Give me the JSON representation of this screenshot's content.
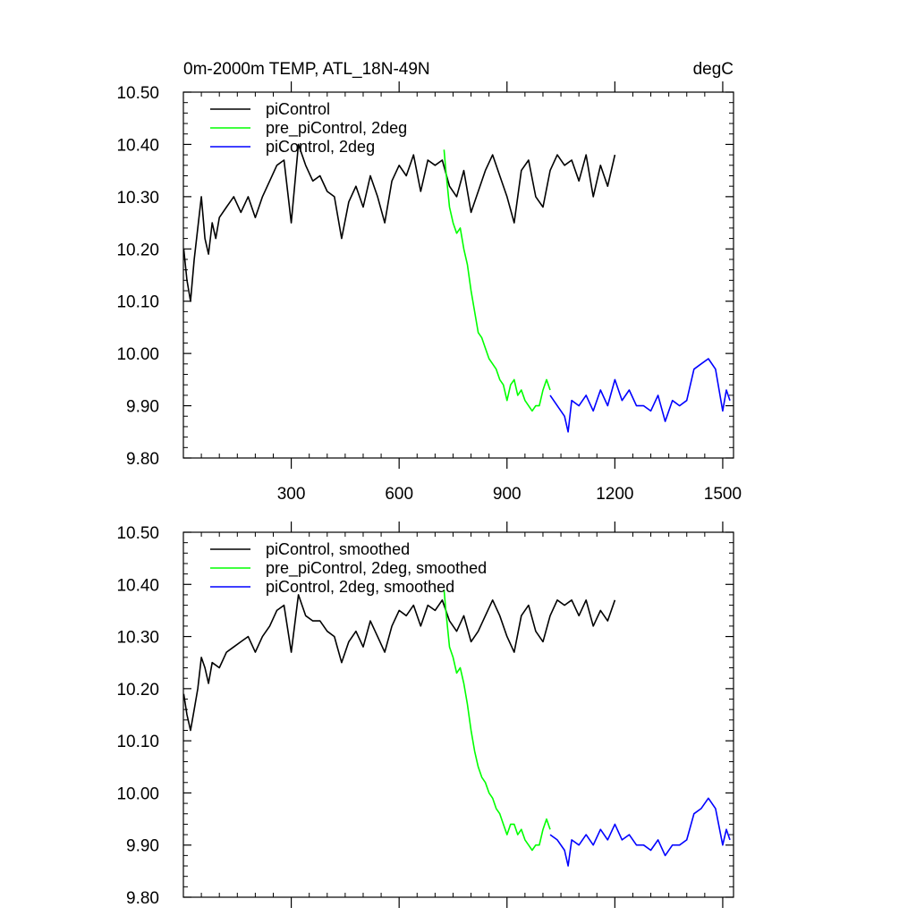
{
  "figure": {
    "title_left": "0m-2000m TEMP, ATL_18N-49N",
    "title_right": "degC"
  },
  "colors": {
    "piControl": "#000000",
    "pre_piControl_2deg": "#00ff00",
    "piControl_2deg": "#0000ff"
  },
  "chart_data": [
    {
      "type": "line",
      "title": "0m-2000m TEMP, ATL_18N-49N",
      "units": "degC",
      "xlabel": "",
      "ylabel": "",
      "xlim": [
        0,
        1530
      ],
      "ylim": [
        9.8,
        10.5
      ],
      "x_ticks": [
        300,
        600,
        900,
        1200,
        1500
      ],
      "x_tick_labels": [
        "300",
        "600",
        "900",
        "1200",
        "1500"
      ],
      "y_ticks": [
        9.8,
        9.9,
        10.0,
        10.1,
        10.2,
        10.3,
        10.4,
        10.5
      ],
      "y_tick_labels": [
        "9.80",
        "9.90",
        "10.00",
        "10.10",
        "10.20",
        "10.30",
        "10.40",
        "10.50"
      ],
      "legend_position": "top-left",
      "series": [
        {
          "name": "piControl",
          "color": "#000000",
          "x": [
            1,
            10,
            20,
            30,
            40,
            50,
            60,
            70,
            80,
            90,
            100,
            120,
            140,
            160,
            180,
            200,
            220,
            240,
            260,
            280,
            300,
            320,
            340,
            360,
            380,
            400,
            420,
            440,
            460,
            480,
            500,
            520,
            540,
            560,
            580,
            600,
            620,
            640,
            660,
            680,
            700,
            720,
            740,
            760,
            780,
            800,
            820,
            840,
            860,
            880,
            900,
            920,
            940,
            960,
            980,
            1000,
            1020,
            1040,
            1060,
            1080,
            1100,
            1120,
            1140,
            1160,
            1180,
            1200
          ],
          "values": [
            10.2,
            10.14,
            10.1,
            10.18,
            10.24,
            10.3,
            10.22,
            10.19,
            10.25,
            10.22,
            10.26,
            10.28,
            10.3,
            10.27,
            10.3,
            10.26,
            10.3,
            10.33,
            10.36,
            10.37,
            10.25,
            10.4,
            10.36,
            10.33,
            10.34,
            10.31,
            10.3,
            10.22,
            10.29,
            10.32,
            10.28,
            10.34,
            10.3,
            10.25,
            10.33,
            10.36,
            10.34,
            10.38,
            10.31,
            10.37,
            10.36,
            10.37,
            10.32,
            10.3,
            10.35,
            10.27,
            10.31,
            10.35,
            10.38,
            10.34,
            10.3,
            10.25,
            10.35,
            10.37,
            10.3,
            10.28,
            10.35,
            10.38,
            10.36,
            10.37,
            10.33,
            10.38,
            10.3,
            10.36,
            10.32,
            10.38
          ]
        },
        {
          "name": "pre_piControl, 2deg",
          "color": "#00ff00",
          "x": [
            725,
            730,
            740,
            750,
            760,
            770,
            780,
            790,
            800,
            810,
            820,
            830,
            840,
            850,
            860,
            870,
            880,
            890,
            900,
            910,
            920,
            930,
            940,
            950,
            960,
            970,
            980,
            990,
            1000,
            1010,
            1020
          ],
          "values": [
            10.39,
            10.35,
            10.28,
            10.25,
            10.23,
            10.24,
            10.2,
            10.17,
            10.12,
            10.08,
            10.04,
            10.03,
            10.01,
            9.99,
            9.98,
            9.97,
            9.95,
            9.94,
            9.91,
            9.94,
            9.95,
            9.92,
            9.93,
            9.91,
            9.9,
            9.89,
            9.9,
            9.9,
            9.93,
            9.95,
            9.93
          ]
        },
        {
          "name": "piControl, 2deg",
          "color": "#0000ff",
          "x": [
            1020,
            1040,
            1060,
            1070,
            1080,
            1100,
            1120,
            1140,
            1160,
            1180,
            1200,
            1220,
            1240,
            1260,
            1280,
            1300,
            1320,
            1340,
            1360,
            1380,
            1400,
            1420,
            1440,
            1460,
            1480,
            1500,
            1510,
            1520
          ],
          "values": [
            9.92,
            9.9,
            9.88,
            9.85,
            9.91,
            9.9,
            9.92,
            9.89,
            9.93,
            9.9,
            9.95,
            9.91,
            9.93,
            9.9,
            9.9,
            9.89,
            9.92,
            9.87,
            9.91,
            9.9,
            9.91,
            9.97,
            9.98,
            9.99,
            9.97,
            9.89,
            9.93,
            9.91
          ]
        }
      ],
      "legend": [
        "piControl",
        "pre_piControl, 2deg",
        "piControl, 2deg"
      ]
    },
    {
      "type": "line",
      "title": "",
      "xlabel": "",
      "ylabel": "",
      "xlim": [
        0,
        1530
      ],
      "ylim": [
        9.8,
        10.5
      ],
      "x_ticks": [
        300,
        600,
        900,
        1200,
        1500
      ],
      "x_tick_labels": [],
      "y_ticks": [
        9.8,
        9.9,
        10.0,
        10.1,
        10.2,
        10.3,
        10.4,
        10.5
      ],
      "y_tick_labels": [
        "9.80",
        "9.90",
        "10.00",
        "10.10",
        "10.20",
        "10.30",
        "10.40",
        "10.50"
      ],
      "legend_position": "top-left",
      "series": [
        {
          "name": "piControl, smoothed",
          "color": "#000000",
          "x": [
            1,
            10,
            20,
            30,
            40,
            50,
            60,
            70,
            80,
            100,
            120,
            140,
            160,
            180,
            200,
            220,
            240,
            260,
            280,
            300,
            320,
            340,
            360,
            380,
            400,
            420,
            440,
            460,
            480,
            500,
            520,
            540,
            560,
            580,
            600,
            620,
            640,
            660,
            680,
            700,
            720,
            740,
            760,
            780,
            800,
            820,
            840,
            860,
            880,
            900,
            920,
            940,
            960,
            980,
            1000,
            1020,
            1040,
            1060,
            1080,
            1100,
            1120,
            1140,
            1160,
            1180,
            1200
          ],
          "values": [
            10.19,
            10.15,
            10.12,
            10.16,
            10.2,
            10.26,
            10.24,
            10.21,
            10.25,
            10.24,
            10.27,
            10.28,
            10.29,
            10.3,
            10.27,
            10.3,
            10.32,
            10.35,
            10.36,
            10.27,
            10.38,
            10.34,
            10.33,
            10.33,
            10.31,
            10.3,
            10.25,
            10.29,
            10.31,
            10.28,
            10.33,
            10.3,
            10.27,
            10.32,
            10.35,
            10.34,
            10.36,
            10.32,
            10.36,
            10.35,
            10.37,
            10.33,
            10.31,
            10.34,
            10.29,
            10.31,
            10.34,
            10.37,
            10.34,
            10.3,
            10.27,
            10.34,
            10.36,
            10.31,
            10.29,
            10.34,
            10.37,
            10.36,
            10.37,
            10.34,
            10.37,
            10.32,
            10.35,
            10.33,
            10.37
          ]
        },
        {
          "name": "pre_piControl, 2deg, smoothed",
          "color": "#00ff00",
          "x": [
            725,
            730,
            740,
            750,
            760,
            770,
            780,
            790,
            800,
            810,
            820,
            830,
            840,
            850,
            860,
            870,
            880,
            890,
            900,
            910,
            920,
            930,
            940,
            950,
            960,
            970,
            980,
            990,
            1000,
            1010,
            1020
          ],
          "values": [
            10.39,
            10.35,
            10.28,
            10.26,
            10.23,
            10.24,
            10.21,
            10.17,
            10.12,
            10.08,
            10.05,
            10.03,
            10.02,
            10.0,
            9.99,
            9.97,
            9.96,
            9.94,
            9.92,
            9.94,
            9.94,
            9.92,
            9.93,
            9.91,
            9.9,
            9.89,
            9.9,
            9.9,
            9.93,
            9.95,
            9.93
          ]
        },
        {
          "name": "piControl, 2deg, smoothed",
          "color": "#0000ff",
          "x": [
            1020,
            1040,
            1060,
            1070,
            1080,
            1100,
            1120,
            1140,
            1160,
            1180,
            1200,
            1220,
            1240,
            1260,
            1280,
            1300,
            1320,
            1340,
            1360,
            1380,
            1400,
            1420,
            1440,
            1460,
            1480,
            1500,
            1510,
            1520
          ],
          "values": [
            9.92,
            9.91,
            9.89,
            9.86,
            9.91,
            9.9,
            9.92,
            9.9,
            9.93,
            9.91,
            9.94,
            9.91,
            9.92,
            9.9,
            9.9,
            9.89,
            9.91,
            9.88,
            9.9,
            9.9,
            9.91,
            9.96,
            9.97,
            9.99,
            9.97,
            9.9,
            9.93,
            9.91
          ]
        }
      ],
      "legend": [
        "piControl, smoothed",
        "pre_piControl, 2deg, smoothed",
        "piControl, 2deg, smoothed"
      ]
    }
  ]
}
